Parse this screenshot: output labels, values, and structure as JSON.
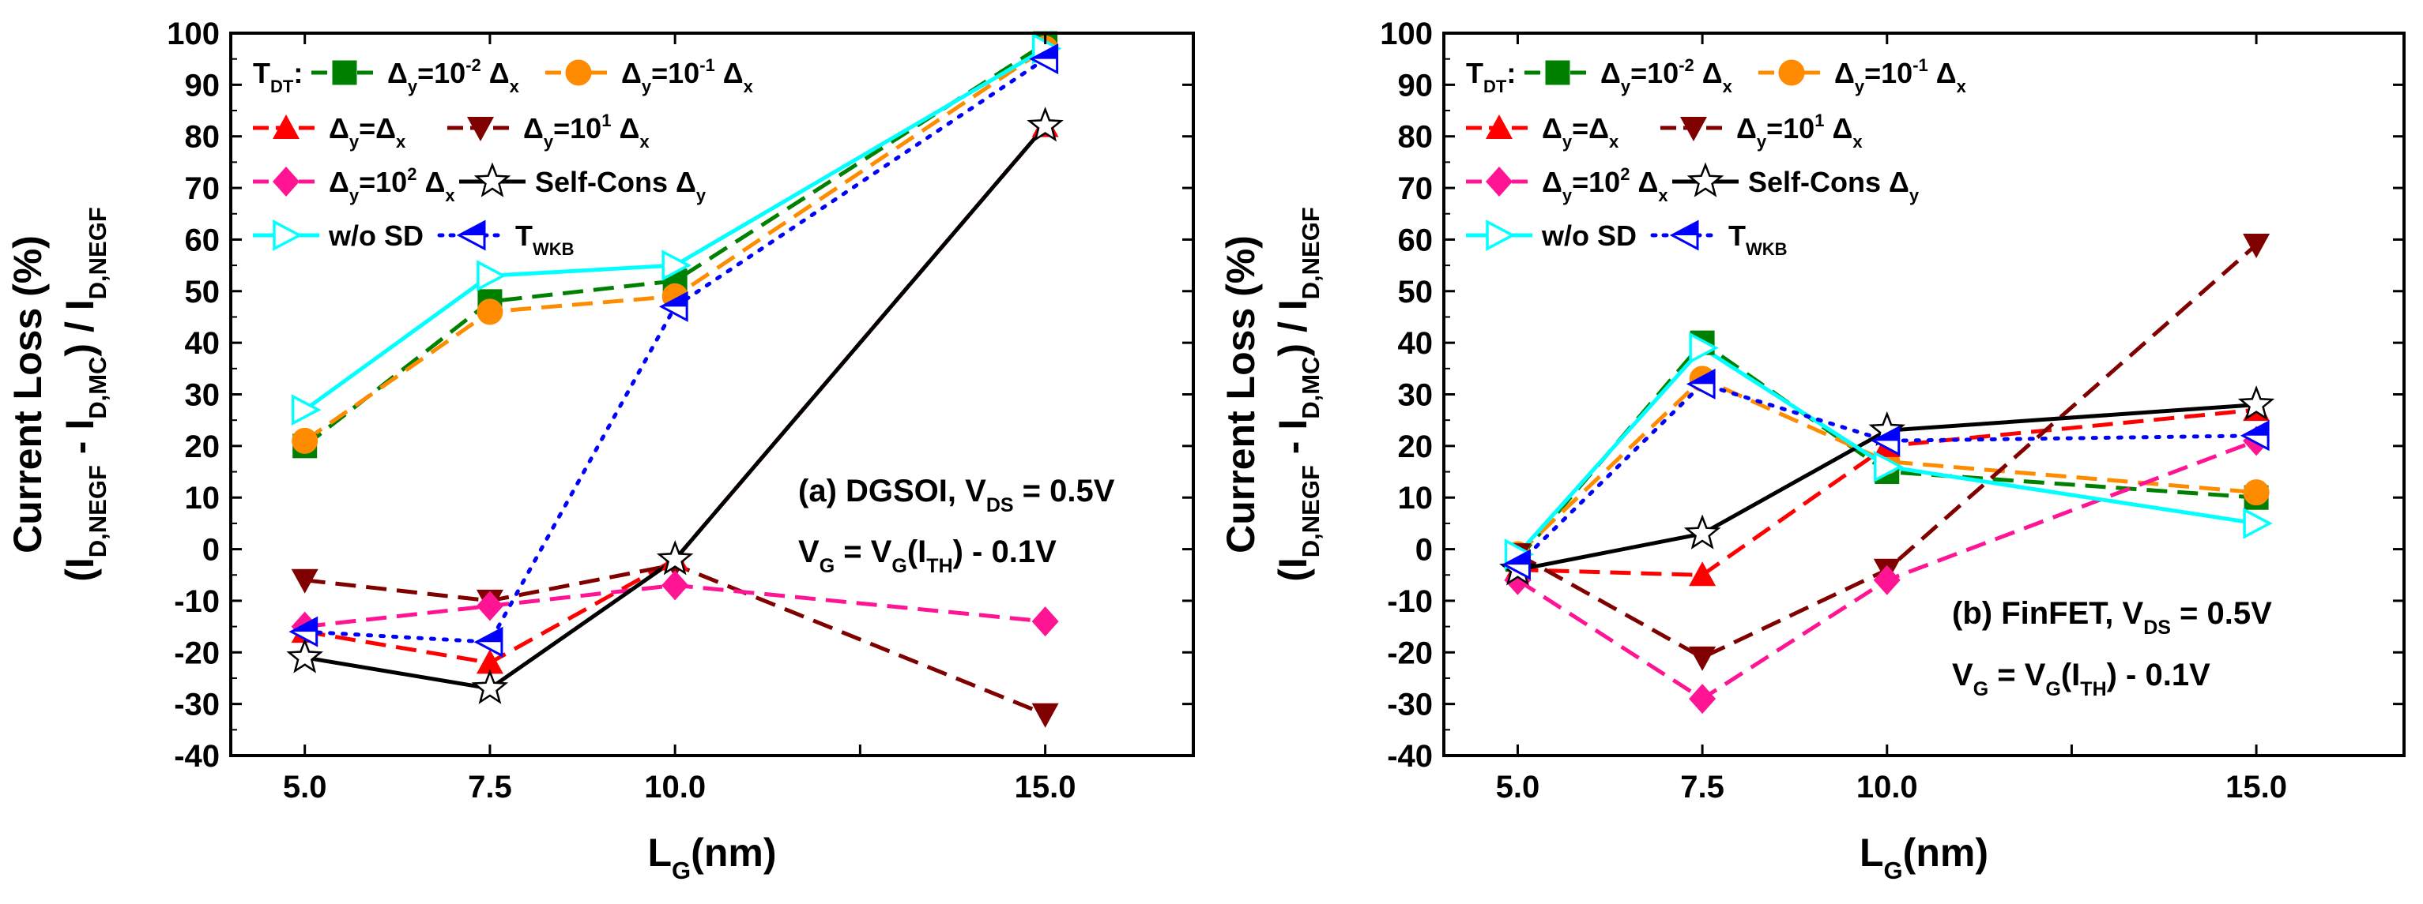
{
  "chart_data": [
    {
      "type": "line",
      "panel": "a",
      "title": "",
      "annotation_line1": "(a) DGSOI, V_DS = 0.5V",
      "annotation_line2": "V_G = V_G(I_TH) - 0.1V",
      "xlabel": "L_G(nm)",
      "ylabel_top": "Current Loss (%)",
      "ylabel_bottom": "(I_D,NEGF - I_D,MC) / I_D,NEGF",
      "x": [
        5.0,
        7.5,
        10.0,
        15.0
      ],
      "x_tick_labels": [
        "5.0",
        "7.5",
        "10.0",
        "15.0"
      ],
      "xlim": [
        4.0,
        17.0
      ],
      "ylim": [
        -40,
        100
      ],
      "y_ticks": [
        -40,
        -30,
        -20,
        -10,
        0,
        10,
        20,
        30,
        40,
        50,
        60,
        70,
        80,
        90,
        100
      ],
      "legend_prefix": "T_DT:",
      "series": [
        {
          "name": "Δy=10^-2 Δx",
          "values": [
            20,
            48,
            52,
            98
          ],
          "color": "#008000",
          "dash": "long",
          "marker": "square"
        },
        {
          "name": "Δy=10^-1 Δx",
          "values": [
            21,
            46,
            49,
            97
          ],
          "color": "#ff8c00",
          "dash": "long",
          "marker": "circle"
        },
        {
          "name": "Δy=Δx",
          "values": [
            -16,
            -22,
            -2,
            82
          ],
          "color": "#ff0000",
          "dash": "long",
          "marker": "triangle-up"
        },
        {
          "name": "Δy=10^1 Δx",
          "values": [
            -6,
            -10,
            -3,
            -32
          ],
          "color": "#800000",
          "dash": "long",
          "marker": "triangle-down"
        },
        {
          "name": "Δy=10^2 Δx",
          "values": [
            -15,
            -11,
            -7,
            -14
          ],
          "color": "#ff1493",
          "dash": "long",
          "marker": "diamond"
        },
        {
          "name": "Self-Cons Δy",
          "values": [
            -21,
            -27,
            -2,
            82
          ],
          "color": "#000000",
          "dash": "solid",
          "marker": "star"
        },
        {
          "name": "w/o SD",
          "values": [
            27,
            53,
            55,
            97
          ],
          "color": "#00ffff",
          "dash": "solid",
          "marker": "triangle-right"
        },
        {
          "name": "T_WKB",
          "values": [
            -16,
            -18,
            47,
            95
          ],
          "color": "#0000ff",
          "dash": "dot",
          "marker": "triangle-left"
        }
      ]
    },
    {
      "type": "line",
      "panel": "b",
      "title": "",
      "annotation_line1": "(b) FinFET, V_DS = 0.5V",
      "annotation_line2": "V_G = V_G(I_TH) - 0.1V",
      "xlabel": "L_G(nm)",
      "ylabel_top": "Current Loss (%)",
      "ylabel_bottom": "(I_D,NEGF - I_D,MC) / I_D,NEGF",
      "x": [
        5.0,
        7.5,
        10.0,
        15.0
      ],
      "x_tick_labels": [
        "5.0",
        "7.5",
        "10.0",
        "15.0"
      ],
      "xlim": [
        4.0,
        17.0
      ],
      "ylim": [
        -40,
        100
      ],
      "y_ticks": [
        -40,
        -30,
        -20,
        -10,
        0,
        10,
        20,
        30,
        40,
        50,
        60,
        70,
        80,
        90,
        100
      ],
      "legend_prefix": "T_DT:",
      "series": [
        {
          "name": "Δy=10^-2 Δx",
          "values": [
            -2,
            40,
            15,
            10
          ],
          "color": "#008000",
          "dash": "long",
          "marker": "square"
        },
        {
          "name": "Δy=10^-1 Δx",
          "values": [
            -1,
            33,
            17,
            11
          ],
          "color": "#ff8c00",
          "dash": "long",
          "marker": "circle"
        },
        {
          "name": "Δy=Δx",
          "values": [
            -4,
            -5,
            20,
            27
          ],
          "color": "#ff0000",
          "dash": "long",
          "marker": "triangle-up"
        },
        {
          "name": "Δy=10^1 Δx",
          "values": [
            -1,
            -21,
            -4,
            59
          ],
          "color": "#800000",
          "dash": "long",
          "marker": "triangle-down"
        },
        {
          "name": "Δy=10^2 Δx",
          "values": [
            -6,
            -29,
            -6,
            21
          ],
          "color": "#ff1493",
          "dash": "long",
          "marker": "diamond"
        },
        {
          "name": "Self-Cons Δy",
          "values": [
            -4,
            3,
            23,
            28
          ],
          "color": "#000000",
          "dash": "solid",
          "marker": "star"
        },
        {
          "name": "w/o SD",
          "values": [
            -1,
            39,
            16,
            5
          ],
          "color": "#00ffff",
          "dash": "solid",
          "marker": "triangle-right"
        },
        {
          "name": "T_WKB",
          "values": [
            -3,
            32,
            21,
            22
          ],
          "color": "#0000ff",
          "dash": "dot",
          "marker": "triangle-left"
        }
      ]
    }
  ]
}
